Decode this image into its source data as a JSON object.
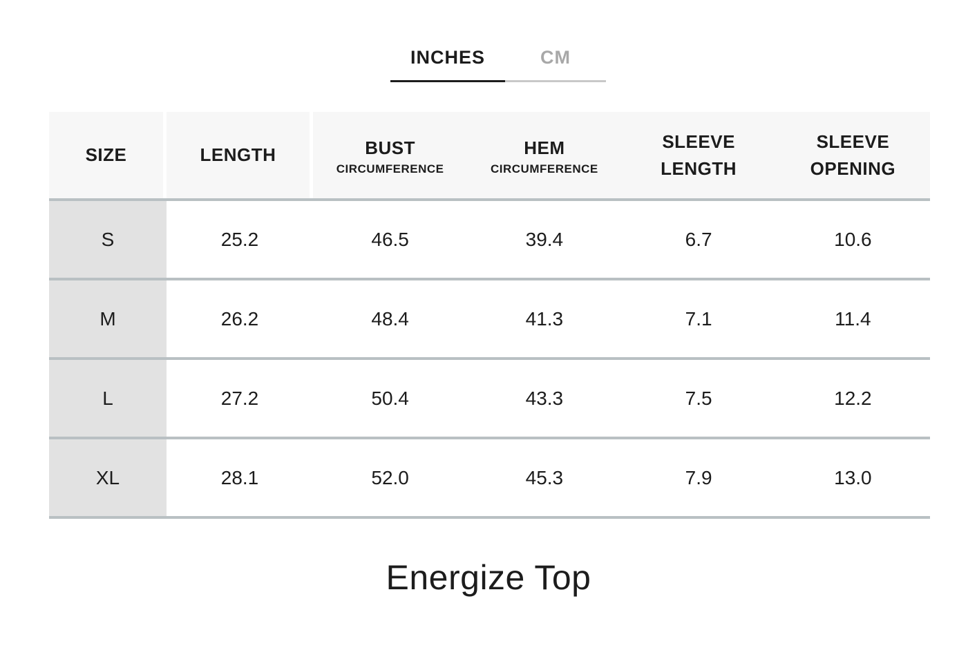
{
  "tabs": [
    {
      "label": "INCHES",
      "active": true
    },
    {
      "label": "CM",
      "active": false
    }
  ],
  "table": {
    "columns": [
      {
        "label": "SIZE",
        "sublabel": ""
      },
      {
        "label": "LENGTH",
        "sublabel": ""
      },
      {
        "label": "BUST",
        "sublabel": "CIRCUMFERENCE"
      },
      {
        "label": "HEM",
        "sublabel": "CIRCUMFERENCE"
      },
      {
        "label": "SLEEVE LENGTH",
        "sublabel": ""
      },
      {
        "label": "SLEEVE OPENING",
        "sublabel": ""
      }
    ],
    "rows": [
      {
        "size": "S",
        "values": [
          "25.2",
          "46.5",
          "39.4",
          "6.7",
          "10.6"
        ]
      },
      {
        "size": "M",
        "values": [
          "26.2",
          "48.4",
          "41.3",
          "7.1",
          "11.4"
        ]
      },
      {
        "size": "L",
        "values": [
          "27.2",
          "50.4",
          "43.3",
          "7.5",
          "12.2"
        ]
      },
      {
        "size": "XL",
        "values": [
          "28.1",
          "52.0",
          "45.3",
          "7.9",
          "13.0"
        ]
      }
    ]
  },
  "product_title": "Energize Top",
  "colors": {
    "text_primary": "#1c1c1c",
    "inactive_tab_text": "#a8a8a8",
    "active_underline": "#1c1c1c",
    "inactive_underline": "#c8c8c8",
    "header_bg": "#f7f7f7",
    "size_col_bg": "#e2e2e2",
    "divider": "#b9c0c3"
  }
}
